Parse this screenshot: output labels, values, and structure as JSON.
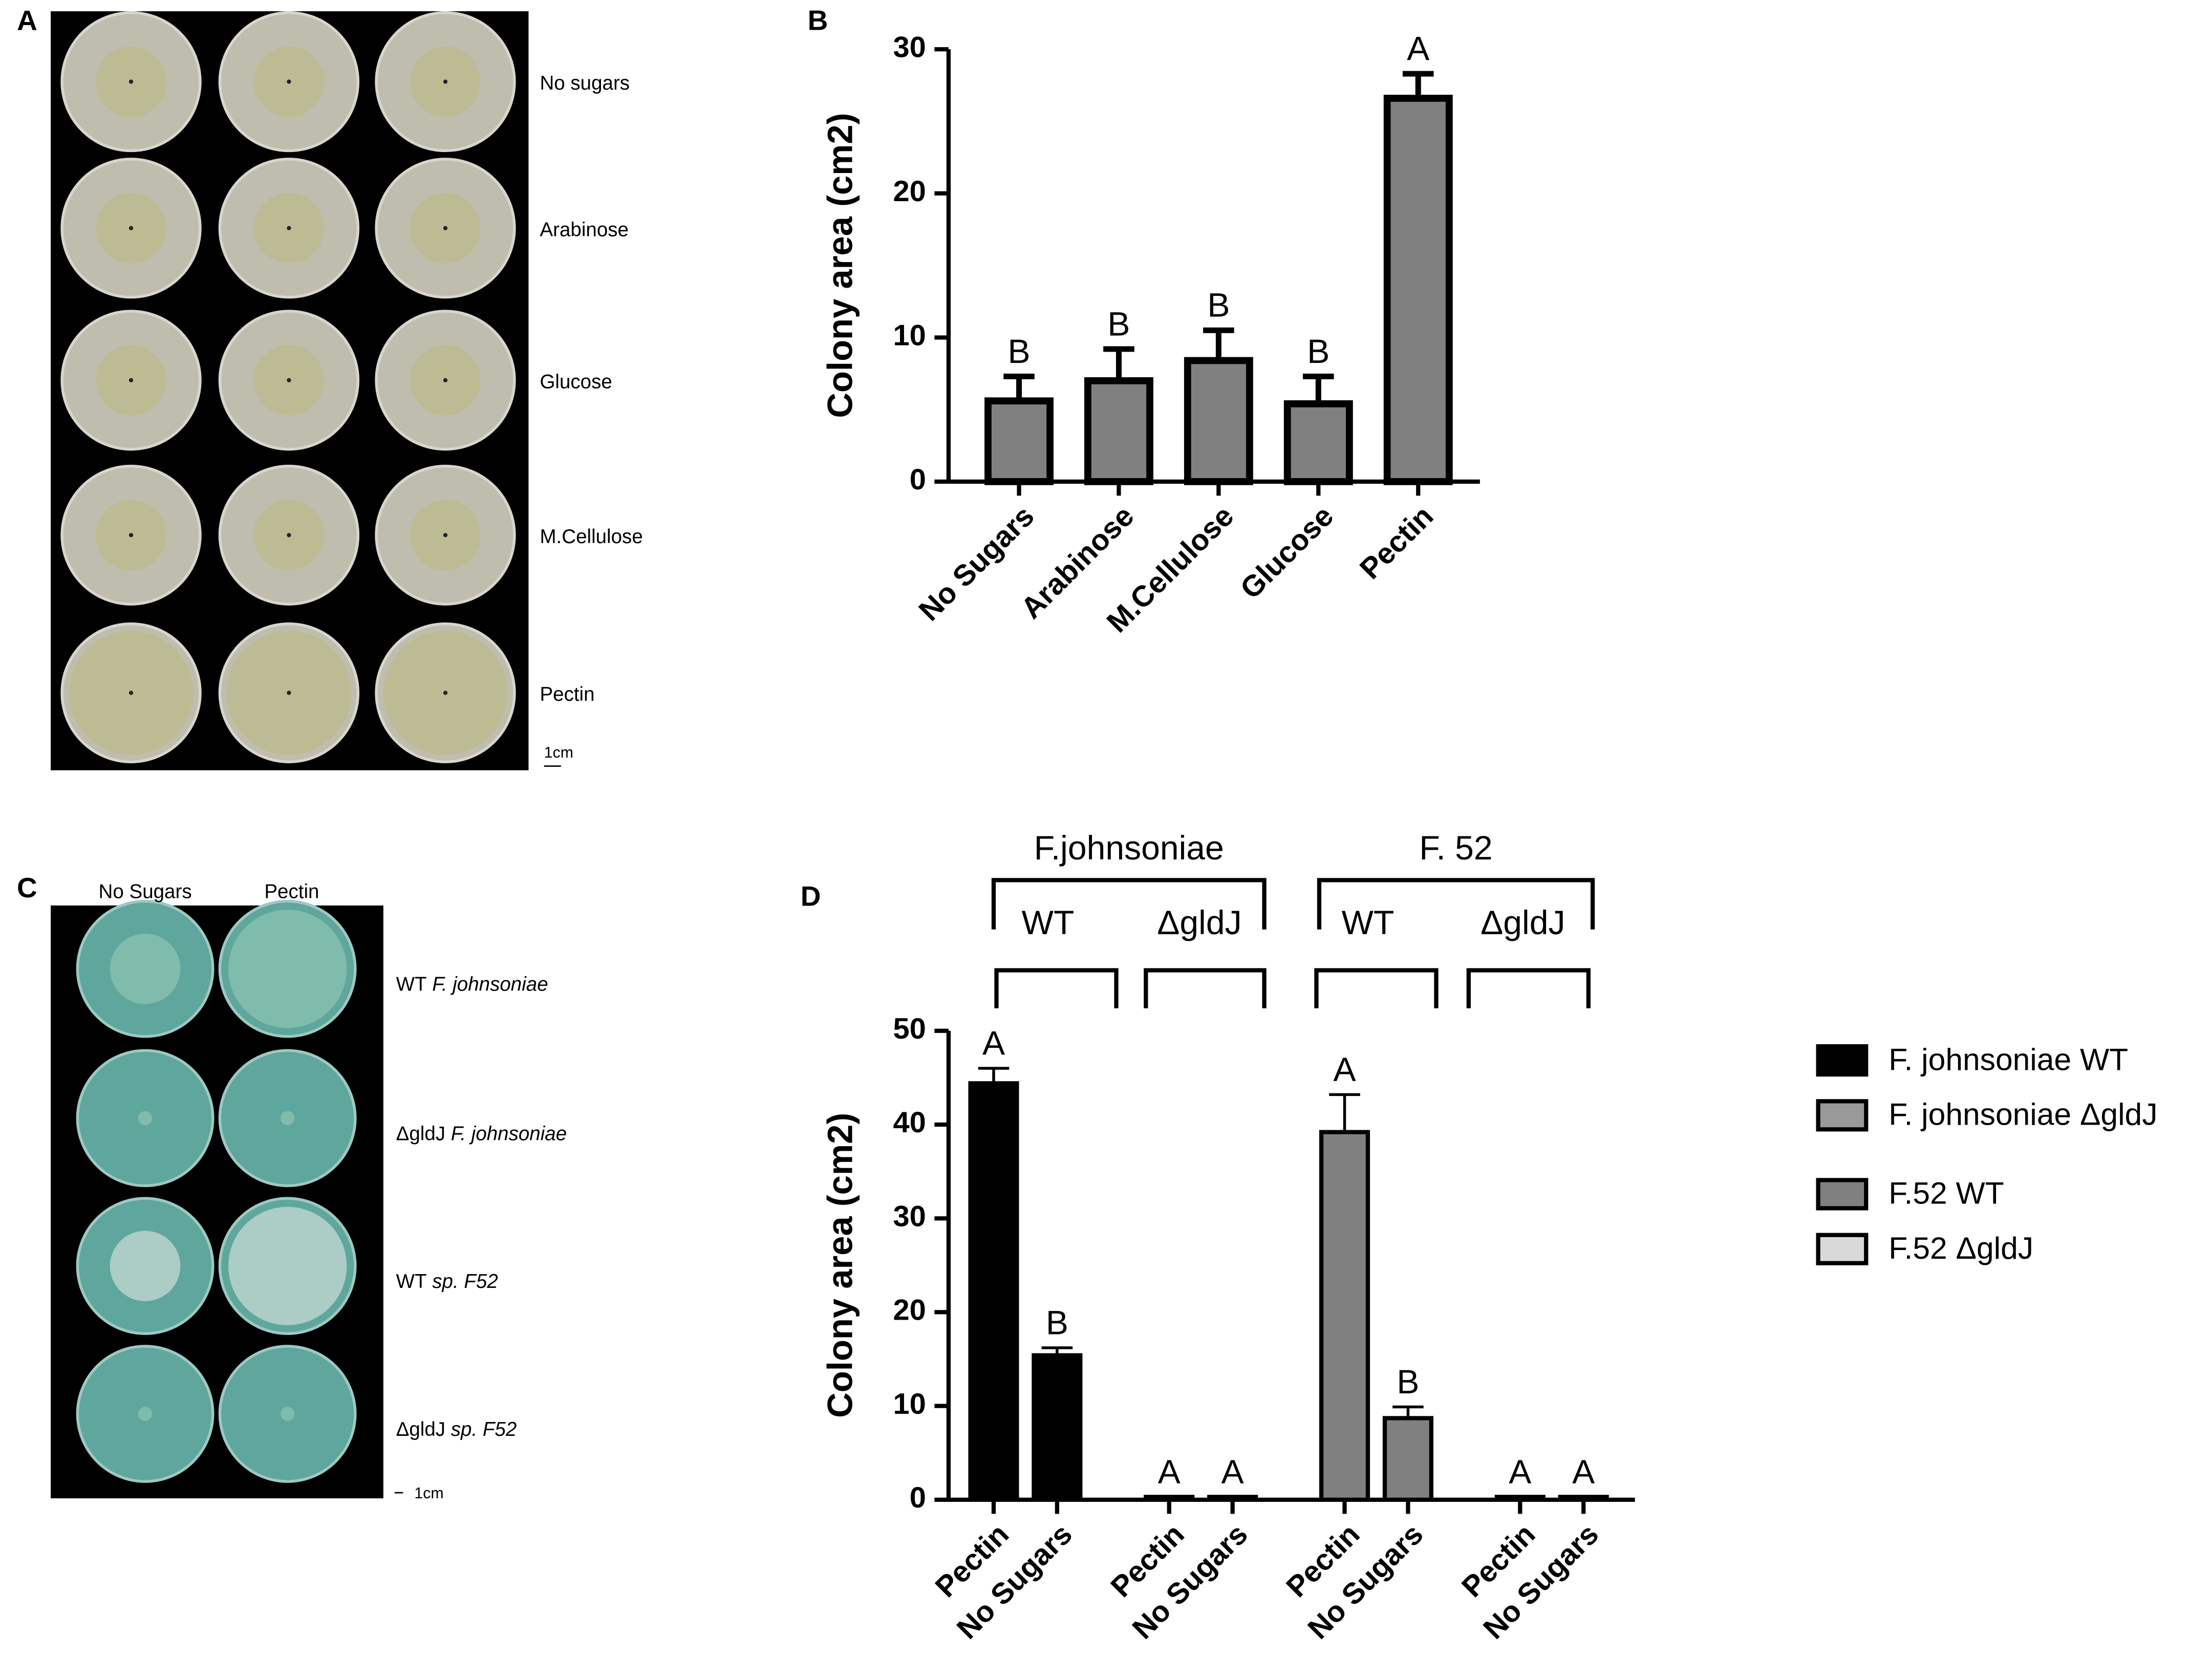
{
  "panel_letters": [
    "A",
    "B",
    "C",
    "D"
  ],
  "panel_a": {
    "rows": [
      "No sugars",
      "Arabinose",
      "Glucose",
      "M.Cellulose",
      "Pectin"
    ],
    "scale": "1cm"
  },
  "panel_c": {
    "columns": [
      "No Sugars",
      "Pectin"
    ],
    "rows": [
      {
        "strain": "WT",
        "species": "F. johnsoniae"
      },
      {
        "strain": "ΔgldJ",
        "species": "F. johnsoniae"
      },
      {
        "strain": "WT",
        "species": "sp. F52"
      },
      {
        "strain": "ΔgldJ",
        "species": "sp. F52"
      }
    ],
    "scale": "1cm"
  },
  "chart_data": [
    {
      "type": "bar",
      "ylabel": "Colony area (cm2)",
      "categories": [
        "No Sugars",
        "Arabinose",
        "M.Cellulose",
        "Glucose",
        "Pectin"
      ],
      "series": [
        {
          "name": null,
          "color": "#808080",
          "values": [
            5.6,
            7.0,
            8.4,
            5.4,
            26.6
          ],
          "errors": [
            1.7,
            2.2,
            2.1,
            1.9,
            1.7
          ]
        }
      ],
      "annotations": [
        "B",
        "B",
        "B",
        "B",
        "A"
      ],
      "ylim": [
        0,
        30
      ],
      "yticks": [
        0,
        10,
        20,
        30
      ]
    },
    {
      "type": "bar",
      "ylabel": "Colony area (cm2)",
      "groups": [
        {
          "label": "F.johnsoniae",
          "subgroups": [
            "WT",
            "ΔgldJ"
          ]
        },
        {
          "label": "F. 52",
          "subgroups": [
            "WT",
            "ΔgldJ"
          ]
        }
      ],
      "categories": [
        "Pectin",
        "No Sugars",
        "Pectin",
        "No Sugars",
        "Pectin",
        "No Sugars",
        "Pectin",
        "No Sugars"
      ],
      "series": [
        {
          "name": "F. johnsoniae WT",
          "color": "#000000",
          "values": [
            44.4,
            15.4,
            null,
            null,
            null,
            null,
            null,
            null
          ],
          "errors": [
            1.6,
            0.8,
            null,
            null,
            null,
            null,
            null,
            null
          ]
        },
        {
          "name": "F. johnsoniae ΔgldJ",
          "color": "#999999",
          "values": [
            null,
            null,
            0.3,
            0.3,
            null,
            null,
            null,
            null
          ],
          "errors": [
            null,
            null,
            null,
            null,
            null,
            null,
            null,
            null
          ]
        },
        {
          "name": "F.52  WT",
          "color": "#808080",
          "values": [
            null,
            null,
            null,
            null,
            39.2,
            8.7,
            null,
            null
          ],
          "errors": [
            null,
            null,
            null,
            null,
            4.0,
            1.2,
            null,
            null
          ]
        },
        {
          "name": "F.52 ΔgldJ",
          "color": "#d9d9d9",
          "values": [
            null,
            null,
            null,
            null,
            null,
            null,
            0.3,
            0.3
          ],
          "errors": [
            null,
            null,
            null,
            null,
            null,
            null,
            null,
            null
          ]
        }
      ],
      "annotations": [
        "A",
        "B",
        "A",
        "A",
        "A",
        "B",
        "A",
        "A"
      ],
      "ylim": [
        0,
        50
      ],
      "yticks": [
        0,
        10,
        20,
        30,
        40,
        50
      ]
    }
  ]
}
